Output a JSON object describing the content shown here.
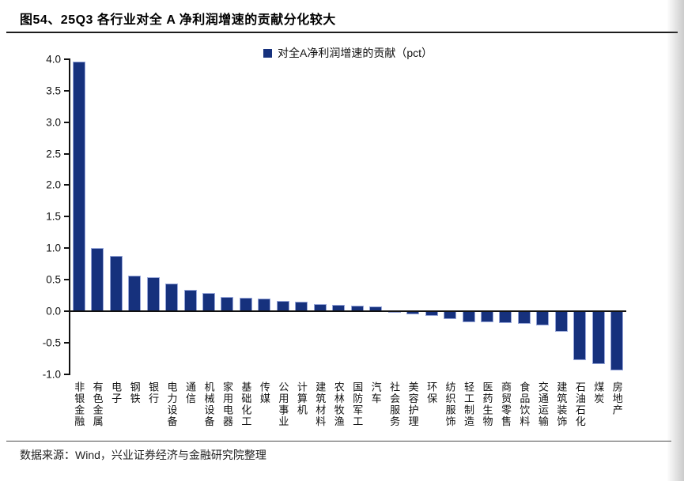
{
  "header": {
    "title": "图54、25Q3 各行业对全 A 净利润增速的贡献分化较大"
  },
  "legend": {
    "label": "对全A净利润增速的贡献（pct）"
  },
  "footer": {
    "source": "数据来源：Wind，兴业证券经济与金融研究院整理"
  },
  "colors": {
    "bar_fill": "#16317d",
    "bar_edge": "#97a6d9",
    "axis": "#111111"
  },
  "chart_data": {
    "type": "bar",
    "title": "图54、25Q3 各行业对全 A 净利润增速的贡献分化较大",
    "legend": [
      "对全A净利润增速的贡献（pct）"
    ],
    "legend_position": "top-center",
    "grid": false,
    "xlabel": "",
    "ylabel": "",
    "ylim": [
      -1.0,
      4.0
    ],
    "yticks": [
      4.0,
      3.5,
      3.0,
      2.5,
      2.0,
      1.5,
      1.0,
      0.5,
      0.0,
      -0.5,
      -1.0
    ],
    "categories": [
      "非银金融",
      "有色金属",
      "电子",
      "钢铁",
      "银行",
      "电力设备",
      "通信",
      "机械设备",
      "家用电器",
      "基础化工",
      "传媒",
      "公用事业",
      "计算机",
      "建筑材料",
      "农林牧渔",
      "国防军工",
      "汽车",
      "社会服务",
      "美容护理",
      "环保",
      "纺织服饰",
      "轻工制造",
      "医药生物",
      "商贸零售",
      "食品饮料",
      "交通运输",
      "建筑装饰",
      "石油石化",
      "煤炭",
      "房地产"
    ],
    "values": [
      3.96,
      1.0,
      0.88,
      0.56,
      0.54,
      0.44,
      0.34,
      0.29,
      0.22,
      0.21,
      0.2,
      0.16,
      0.15,
      0.11,
      0.1,
      0.09,
      0.08,
      -0.03,
      -0.05,
      -0.07,
      -0.13,
      -0.17,
      -0.18,
      -0.19,
      -0.2,
      -0.23,
      -0.33,
      -0.78,
      -0.84,
      -0.94
    ]
  }
}
